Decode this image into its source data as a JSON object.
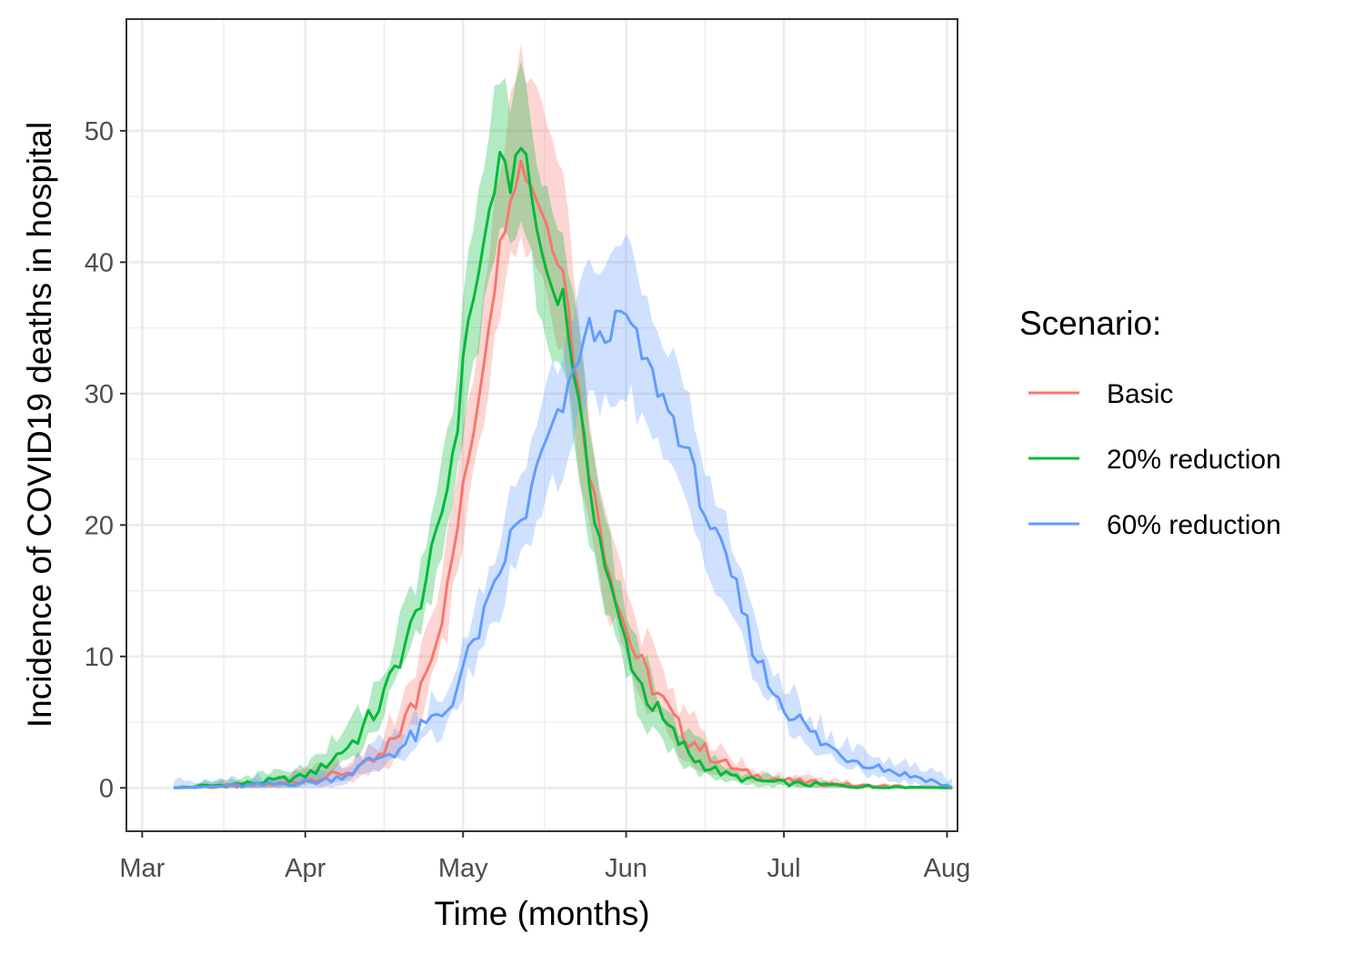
{
  "chart_data": {
    "type": "line",
    "title": "",
    "xlabel": "Time (months)",
    "ylabel": "Incidence of COVID19 deaths in hospital",
    "x_ticks": [
      "Mar",
      "Apr",
      "May",
      "Jun",
      "Jul",
      "Aug"
    ],
    "y_ticks": [
      0,
      10,
      20,
      30,
      40,
      50
    ],
    "xlim": [
      "2020-02-27",
      "2020-08-03"
    ],
    "ylim": [
      -3.3,
      58.5
    ],
    "grid": true,
    "legend": {
      "title": "Scenario:",
      "position": "right"
    },
    "series": [
      {
        "name": "Basic",
        "color": "#F8766D",
        "x": [
          "2020-03-07",
          "2020-03-16",
          "2020-03-23",
          "2020-03-27",
          "2020-03-31",
          "2020-04-04",
          "2020-04-07",
          "2020-04-10",
          "2020-04-13",
          "2020-04-16",
          "2020-04-19",
          "2020-04-22",
          "2020-04-24",
          "2020-04-26",
          "2020-04-28",
          "2020-04-30",
          "2020-05-02",
          "2020-05-04",
          "2020-05-06",
          "2020-05-08",
          "2020-05-10",
          "2020-05-12",
          "2020-05-14",
          "2020-05-16",
          "2020-05-18",
          "2020-05-20",
          "2020-05-22",
          "2020-05-24",
          "2020-05-26",
          "2020-05-28",
          "2020-05-30",
          "2020-06-01",
          "2020-06-03",
          "2020-06-05",
          "2020-06-08",
          "2020-06-11",
          "2020-06-14",
          "2020-06-17",
          "2020-06-20",
          "2020-06-23",
          "2020-06-27",
          "2020-07-03",
          "2020-07-10",
          "2020-07-17",
          "2020-07-25",
          "2020-08-02"
        ],
        "values": [
          0,
          0.1,
          0.2,
          0.3,
          0.5,
          0.8,
          1.0,
          1.3,
          1.8,
          2.5,
          4.5,
          6.5,
          9.5,
          11.5,
          15,
          20,
          25,
          30,
          36,
          41,
          45.5,
          47.5,
          46,
          44,
          41.5,
          40,
          33,
          27,
          22,
          18,
          15,
          12,
          10,
          8.5,
          6.5,
          4.5,
          3.5,
          2.5,
          1.8,
          1.2,
          0.8,
          0.5,
          0.3,
          0.1,
          0.05,
          0
        ],
        "lower": [
          0,
          0,
          0,
          0,
          0.1,
          0.2,
          0.3,
          0.5,
          0.9,
          1.4,
          2.8,
          4.5,
          7,
          9,
          12,
          17,
          21,
          26,
          31,
          36,
          40,
          42,
          40,
          38,
          35,
          33,
          27,
          22,
          18,
          14.5,
          12,
          9.5,
          7.5,
          6,
          4.5,
          3,
          2,
          1.4,
          0.9,
          0.5,
          0.3,
          0.15,
          0.05,
          0,
          0,
          0
        ],
        "upper": [
          0,
          0.4,
          0.7,
          0.9,
          1.2,
          1.6,
          1.9,
          2.3,
          3,
          4,
          6.5,
          9,
          12.5,
          15,
          19,
          24,
          29,
          34,
          41,
          47,
          52,
          55.5,
          54,
          52,
          49,
          47,
          39,
          32,
          26,
          22,
          18.5,
          15,
          12.5,
          11,
          8.5,
          6.5,
          5,
          3.8,
          2.8,
          2,
          1.4,
          0.9,
          0.6,
          0.3,
          0.15,
          0.05
        ]
      },
      {
        "name": "20% reduction",
        "color": "#00BA38",
        "x": [
          "2020-03-07",
          "2020-03-16",
          "2020-03-23",
          "2020-03-27",
          "2020-03-31",
          "2020-04-04",
          "2020-04-07",
          "2020-04-10",
          "2020-04-13",
          "2020-04-16",
          "2020-04-19",
          "2020-04-22",
          "2020-04-24",
          "2020-04-26",
          "2020-04-28",
          "2020-04-30",
          "2020-05-02",
          "2020-05-04",
          "2020-05-06",
          "2020-05-08",
          "2020-05-10",
          "2020-05-12",
          "2020-05-14",
          "2020-05-16",
          "2020-05-18",
          "2020-05-20",
          "2020-05-22",
          "2020-05-24",
          "2020-05-26",
          "2020-05-28",
          "2020-05-30",
          "2020-06-01",
          "2020-06-03",
          "2020-06-05",
          "2020-06-08",
          "2020-06-11",
          "2020-06-14",
          "2020-06-17",
          "2020-06-20",
          "2020-06-23",
          "2020-06-27",
          "2020-07-03",
          "2020-07-10",
          "2020-07-17",
          "2020-07-25",
          "2020-08-02"
        ],
        "values": [
          0,
          0.2,
          0.4,
          0.6,
          0.8,
          1.5,
          2.5,
          3.5,
          5,
          7,
          10,
          13,
          16,
          19,
          23,
          28,
          36,
          39,
          44,
          47.5,
          46,
          49.5,
          45,
          40.5,
          38,
          37.5,
          32,
          26,
          21,
          17,
          13.5,
          11,
          8.5,
          7,
          5,
          3.5,
          2.2,
          1.5,
          1,
          0.7,
          0.5,
          0.3,
          0.2,
          0.1,
          0.05,
          0
        ],
        "lower": [
          0,
          0,
          0,
          0.1,
          0.2,
          0.6,
          1.3,
          2.2,
          3.5,
          5.5,
          8,
          11,
          13.5,
          16,
          20,
          24,
          31,
          34,
          38,
          42,
          41,
          44,
          40,
          35,
          33,
          32,
          27,
          21.5,
          17,
          13.5,
          10.5,
          8.5,
          6.5,
          5,
          3.5,
          2.2,
          1.2,
          0.7,
          0.4,
          0.2,
          0.1,
          0.05,
          0,
          0,
          0,
          0
        ],
        "upper": [
          0,
          0.6,
          1,
          1.3,
          1.6,
          2.5,
          3.8,
          5,
          7,
          9,
          12.5,
          15.5,
          19,
          22.5,
          26.5,
          32,
          41,
          45,
          51,
          54,
          52,
          56,
          51,
          46,
          43.5,
          43,
          37,
          31,
          25.5,
          21,
          17,
          14,
          11,
          9,
          6.8,
          5,
          3.5,
          2.5,
          1.8,
          1.3,
          0.9,
          0.6,
          0.4,
          0.25,
          0.1,
          0.05
        ]
      },
      {
        "name": "60% reduction",
        "color": "#619CFF",
        "x": [
          "2020-03-07",
          "2020-03-16",
          "2020-03-23",
          "2020-03-27",
          "2020-03-31",
          "2020-04-04",
          "2020-04-07",
          "2020-04-10",
          "2020-04-13",
          "2020-04-16",
          "2020-04-19",
          "2020-04-22",
          "2020-04-25",
          "2020-04-28",
          "2020-05-01",
          "2020-05-04",
          "2020-05-07",
          "2020-05-10",
          "2020-05-13",
          "2020-05-16",
          "2020-05-19",
          "2020-05-21",
          "2020-05-23",
          "2020-05-25",
          "2020-05-27",
          "2020-05-29",
          "2020-06-01",
          "2020-06-04",
          "2020-06-07",
          "2020-06-10",
          "2020-06-13",
          "2020-06-16",
          "2020-06-19",
          "2020-06-22",
          "2020-06-25",
          "2020-06-28",
          "2020-07-01",
          "2020-07-04",
          "2020-07-08",
          "2020-07-12",
          "2020-07-16",
          "2020-07-20",
          "2020-07-24",
          "2020-07-28",
          "2020-08-02"
        ],
        "values": [
          0,
          0.1,
          0.2,
          0.3,
          0.4,
          0.5,
          0.8,
          1.2,
          2.0,
          2.5,
          3.0,
          4.0,
          5.0,
          6.0,
          9.0,
          12.0,
          15.0,
          19.0,
          21.0,
          25.5,
          28.0,
          30.0,
          33.0,
          35.0,
          34.0,
          35.0,
          36.0,
          33.0,
          30.5,
          28.0,
          25.0,
          21.0,
          18.0,
          15.0,
          11.0,
          8.0,
          6.5,
          5.0,
          3.5,
          2.5,
          2.0,
          1.5,
          1.0,
          0.7,
          0
        ]
      }
    ]
  }
}
